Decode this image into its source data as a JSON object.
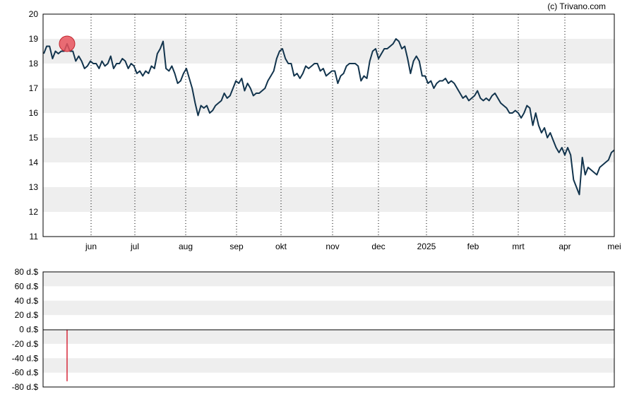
{
  "copyright": "(c) Trivano.com",
  "colors": {
    "price_line": "#12344d",
    "band": "#eeeeee",
    "marker_fill": "#e8545d",
    "marker_stroke": "#c0262f",
    "volume_bar": "#d6283a"
  },
  "chart_data": [
    {
      "type": "line",
      "x_tick_labels": [
        "jun",
        "jul",
        "aug",
        "sep",
        "okt",
        "nov",
        "dec",
        "2025",
        "feb",
        "mrt",
        "apr",
        "mei"
      ],
      "y_tick_labels": [
        "11",
        "12",
        "13",
        "14",
        "15",
        "16",
        "17",
        "18",
        "19",
        "20"
      ],
      "ylim": [
        11,
        20
      ],
      "grid": "horizontal bands, vertical dotted month lines",
      "series": [
        {
          "values": [
            18.4,
            18.7,
            18.7,
            18.2,
            18.5,
            18.4,
            18.5,
            18.5,
            18.8,
            18.5,
            18.5,
            18.1,
            18.3,
            18.1,
            17.8,
            17.9,
            18.1,
            18.0,
            18.0,
            17.8,
            18.1,
            17.9,
            18.0,
            18.3,
            17.8,
            18.0,
            18.0,
            18.2,
            18.1,
            17.8,
            18.0,
            17.9,
            17.6,
            17.7,
            17.5,
            17.7,
            17.6,
            17.9,
            17.8,
            18.4,
            18.6,
            18.9,
            17.8,
            17.7,
            17.9,
            17.6,
            17.2,
            17.3,
            17.6,
            17.8,
            17.4,
            17.0,
            16.4,
            15.9,
            16.3,
            16.2,
            16.3,
            16.0,
            16.1,
            16.3,
            16.4,
            16.5,
            16.8,
            16.6,
            16.7,
            17.0,
            17.3,
            17.2,
            17.4,
            16.9,
            17.2,
            17.0,
            16.7,
            16.8,
            16.8,
            16.9,
            17.0,
            17.3,
            17.5,
            17.7,
            18.2,
            18.5,
            18.6,
            18.2,
            18.0,
            18.0,
            17.5,
            17.6,
            17.4,
            17.6,
            17.9,
            17.8,
            17.9,
            18.0,
            18.0,
            17.7,
            17.8,
            17.5,
            17.6,
            17.7,
            17.7,
            17.2,
            17.5,
            17.6,
            17.9,
            18.0,
            18.0,
            18.0,
            17.9,
            17.3,
            17.5,
            17.4,
            18.1,
            18.5,
            18.6,
            18.2,
            18.4,
            18.6,
            18.6,
            18.7,
            18.8,
            19.0,
            18.9,
            18.6,
            18.7,
            18.2,
            17.6,
            18.1,
            18.3,
            18.1,
            17.5,
            17.5,
            17.2,
            17.3,
            17.0,
            17.2,
            17.3,
            17.3,
            17.4,
            17.2,
            17.3,
            17.2,
            17.0,
            16.8,
            16.6,
            16.7,
            16.5,
            16.6,
            16.7,
            16.9,
            16.6,
            16.5,
            16.6,
            16.5,
            16.7,
            16.8,
            16.6,
            16.4,
            16.3,
            16.2,
            16.0,
            16.0,
            16.1,
            16.0,
            15.8,
            16.0,
            16.3,
            16.2,
            15.5,
            16.0,
            15.5,
            15.2,
            15.4,
            15.0,
            15.2,
            14.9,
            14.6,
            14.4,
            14.6,
            14.3,
            14.6,
            14.3,
            13.3,
            13.0,
            12.7,
            14.2,
            13.5,
            13.8,
            13.7,
            13.6,
            13.5,
            13.8,
            13.9,
            14.0,
            14.1,
            14.4,
            14.5
          ]
        }
      ],
      "markers": [
        {
          "type": "circle",
          "index": 8
        }
      ]
    },
    {
      "type": "bar",
      "y_tick_labels": [
        "80 d.$",
        "60 d.$",
        "40 d.$",
        "20 d.$",
        "0 d.$",
        "-20 d.$",
        "-40 d.$",
        "-60 d.$",
        "-80 d.$"
      ],
      "ylim": [
        -80,
        80
      ],
      "bars": [
        {
          "index": 8,
          "value": -72
        }
      ]
    }
  ]
}
